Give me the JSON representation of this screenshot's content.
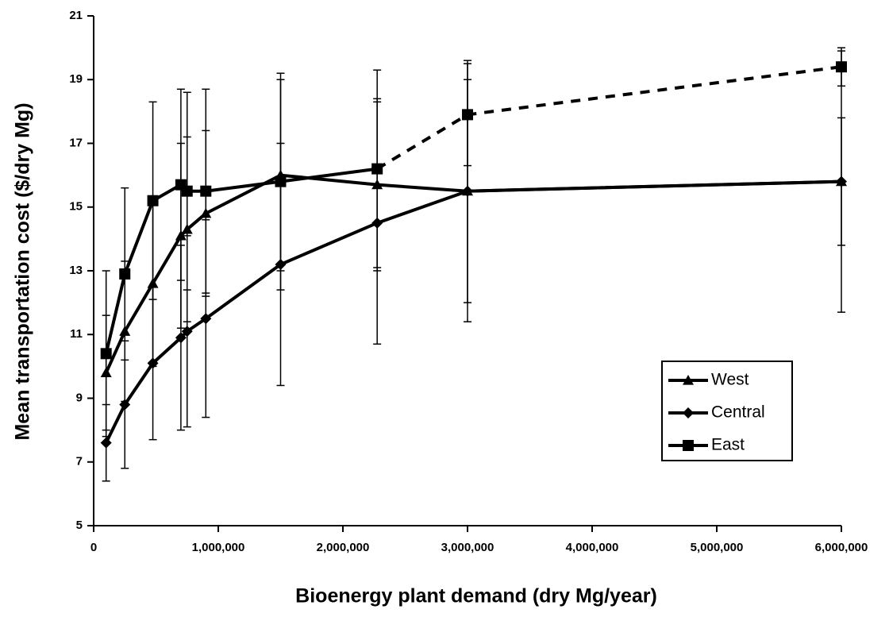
{
  "chart_data": {
    "type": "line",
    "xlabel": "Bioenergy plant demand (dry Mg/year)",
    "ylabel": "Mean transportation cost ($/dry Mg)",
    "x": [
      100000,
      250000,
      475000,
      700000,
      750000,
      900000,
      1500000,
      2275000,
      3000000,
      6000000
    ],
    "series": [
      {
        "name": "West",
        "color": "#000000",
        "marker": "triangle",
        "values": [
          9.8,
          11.1,
          12.6,
          14.1,
          14.3,
          14.8,
          16.0,
          15.7,
          15.5,
          15.8
        ],
        "errors": [
          1.8,
          2.2,
          2.6,
          2.9,
          2.9,
          2.6,
          3.0,
          2.7,
          3.5,
          2.0
        ]
      },
      {
        "name": "Central",
        "color": "#000000",
        "marker": "diamond",
        "values": [
          7.6,
          8.8,
          10.1,
          10.9,
          11.1,
          11.5,
          13.2,
          14.5,
          15.5,
          15.8
        ],
        "errors": [
          1.2,
          2.0,
          2.4,
          2.9,
          3.0,
          3.1,
          3.8,
          3.8,
          4.1,
          4.1
        ]
      },
      {
        "name": "East",
        "color": "#000000",
        "marker": "square",
        "dashed_from": 7,
        "values": [
          10.4,
          12.9,
          15.2,
          15.7,
          15.5,
          15.5,
          15.8,
          16.2,
          17.9,
          19.4
        ],
        "errors": [
          2.6,
          2.7,
          3.1,
          3.0,
          3.1,
          3.2,
          3.4,
          3.1,
          1.6,
          0.6
        ]
      }
    ],
    "xlim": [
      0,
      6000000
    ],
    "xticks": [
      0,
      {
        "value": 1000000,
        "label": "1,000,000"
      },
      {
        "value": 2000000,
        "label": "2,000,000"
      },
      {
        "value": 3000000,
        "label": "3,000,000"
      },
      {
        "value": 4000000,
        "label": "4,000,000"
      },
      {
        "value": 5000000,
        "label": "5,000,000"
      },
      {
        "value": 6000000,
        "label": "6,000,000"
      }
    ],
    "ylim": [
      5,
      21
    ],
    "yticks": [
      5,
      7,
      9,
      11,
      13,
      15,
      17,
      19,
      21
    ],
    "grid": false,
    "legend": "lower right"
  }
}
